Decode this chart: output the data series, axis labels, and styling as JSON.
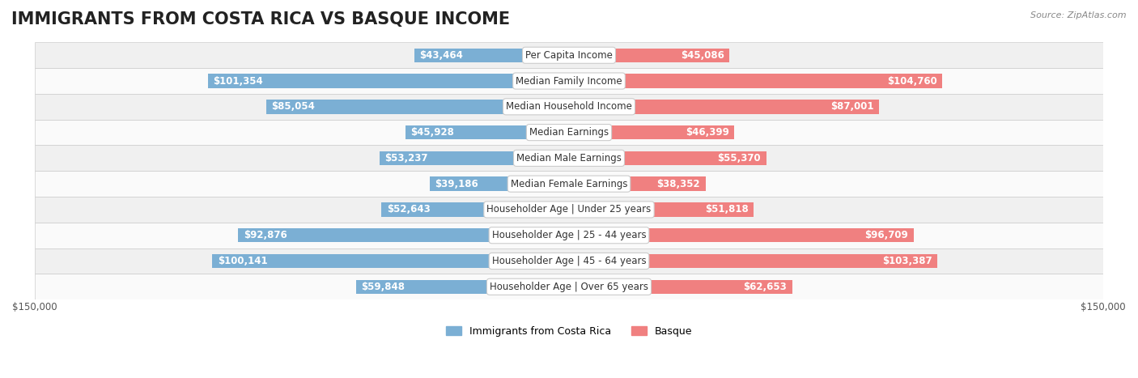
{
  "title": "IMMIGRANTS FROM COSTA RICA VS BASQUE INCOME",
  "source": "Source: ZipAtlas.com",
  "categories": [
    "Per Capita Income",
    "Median Family Income",
    "Median Household Income",
    "Median Earnings",
    "Median Male Earnings",
    "Median Female Earnings",
    "Householder Age | Under 25 years",
    "Householder Age | 25 - 44 years",
    "Householder Age | 45 - 64 years",
    "Householder Age | Over 65 years"
  ],
  "costa_rica_values": [
    43464,
    101354,
    85054,
    45928,
    53237,
    39186,
    52643,
    92876,
    100141,
    59848
  ],
  "basque_values": [
    45086,
    104760,
    87001,
    46399,
    55370,
    38352,
    51818,
    96709,
    103387,
    62653
  ],
  "costa_rica_labels": [
    "$43,464",
    "$101,354",
    "$85,054",
    "$45,928",
    "$53,237",
    "$39,186",
    "$52,643",
    "$92,876",
    "$100,141",
    "$59,848"
  ],
  "basque_labels": [
    "$45,086",
    "$104,760",
    "$87,001",
    "$46,399",
    "$55,370",
    "$38,352",
    "$51,818",
    "$96,709",
    "$103,387",
    "$62,653"
  ],
  "costa_rica_color": "#7BAFD4",
  "costa_rica_color_dark": "#5B9DC8",
  "basque_color": "#F08080",
  "basque_color_dark": "#E06080",
  "bar_height": 0.55,
  "max_value": 150000,
  "bg_color": "#f5f5f5",
  "row_bg_even": "#f0f0f0",
  "row_bg_odd": "#fafafa",
  "title_fontsize": 15,
  "label_fontsize": 8.5,
  "category_fontsize": 8.5,
  "legend_fontsize": 9,
  "axis_fontsize": 8.5
}
